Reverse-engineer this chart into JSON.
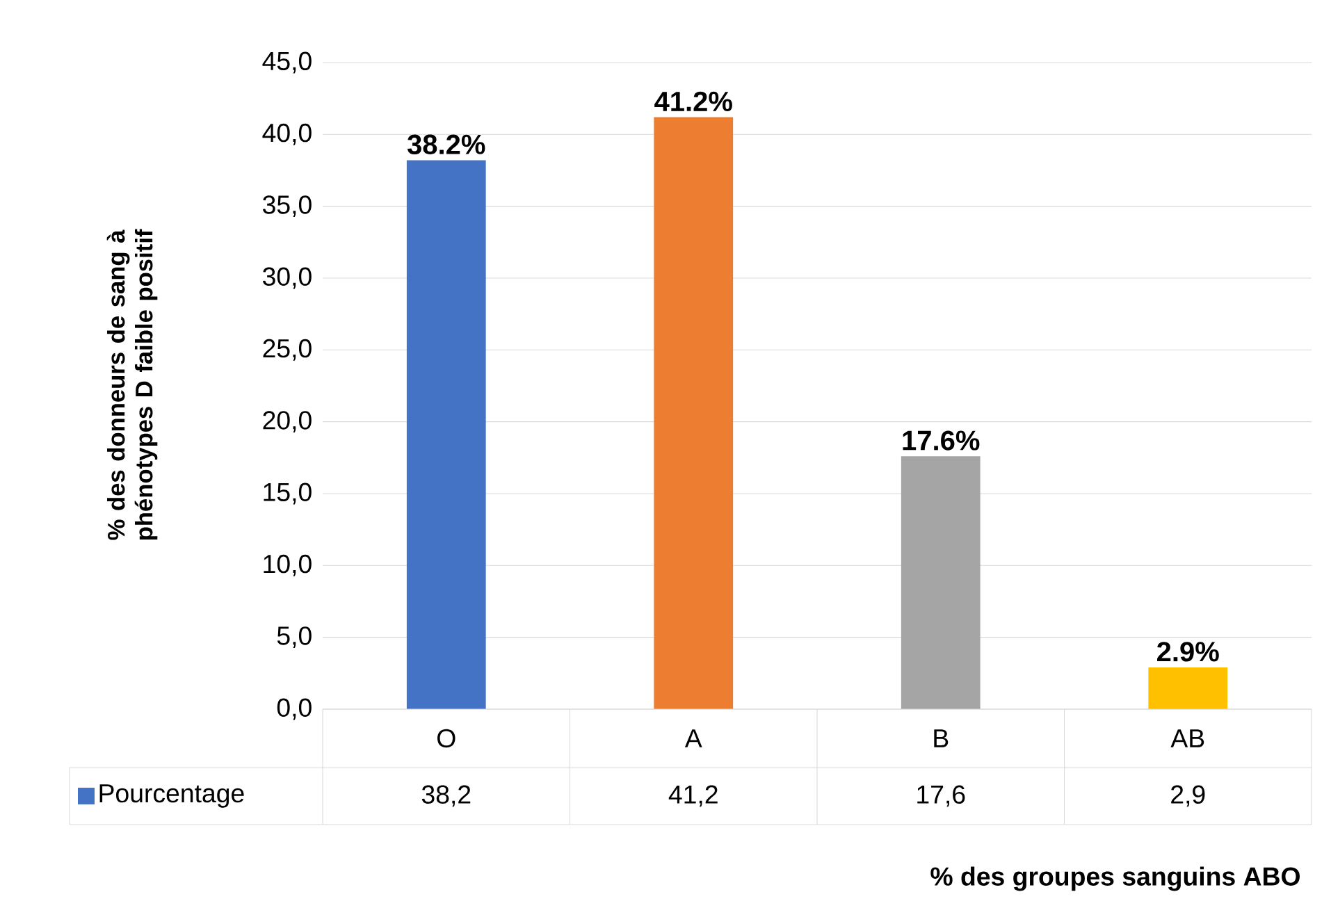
{
  "chart_data": {
    "type": "bar",
    "xlabel": "% des groupes sanguins ABO",
    "ylabel": "% des donneurs de sang à phénotypes D faible positif",
    "categories": [
      "O",
      "A",
      "B",
      "AB"
    ],
    "series": [
      {
        "name": "Pourcentage",
        "color": "#4472c4",
        "colors": [
          "#4472c4",
          "#ed7d31",
          "#a5a5a5",
          "#ffc000"
        ],
        "values": [
          38.2,
          41.2,
          17.6,
          2.9
        ],
        "value_labels": [
          "38.2%",
          "41.2%",
          "17.6%",
          "2.9%"
        ]
      }
    ],
    "ylim": [
      0,
      45
    ],
    "yticks": [
      {
        "value": 0,
        "label": "0,0"
      },
      {
        "value": 5,
        "label": "5,0"
      },
      {
        "value": 10,
        "label": "10,0"
      },
      {
        "value": 15,
        "label": "15,0"
      },
      {
        "value": 20,
        "label": "20,0"
      },
      {
        "value": 25,
        "label": "25,0"
      },
      {
        "value": 30,
        "label": "30,0"
      },
      {
        "value": 35,
        "label": "35,0"
      },
      {
        "value": 40,
        "label": "40,0"
      },
      {
        "value": 45,
        "label": "45,0"
      }
    ],
    "annotations": [
      "38,2",
      "41,2",
      "17,6",
      "2,9"
    ],
    "grid": "y",
    "legend": "bottom"
  }
}
